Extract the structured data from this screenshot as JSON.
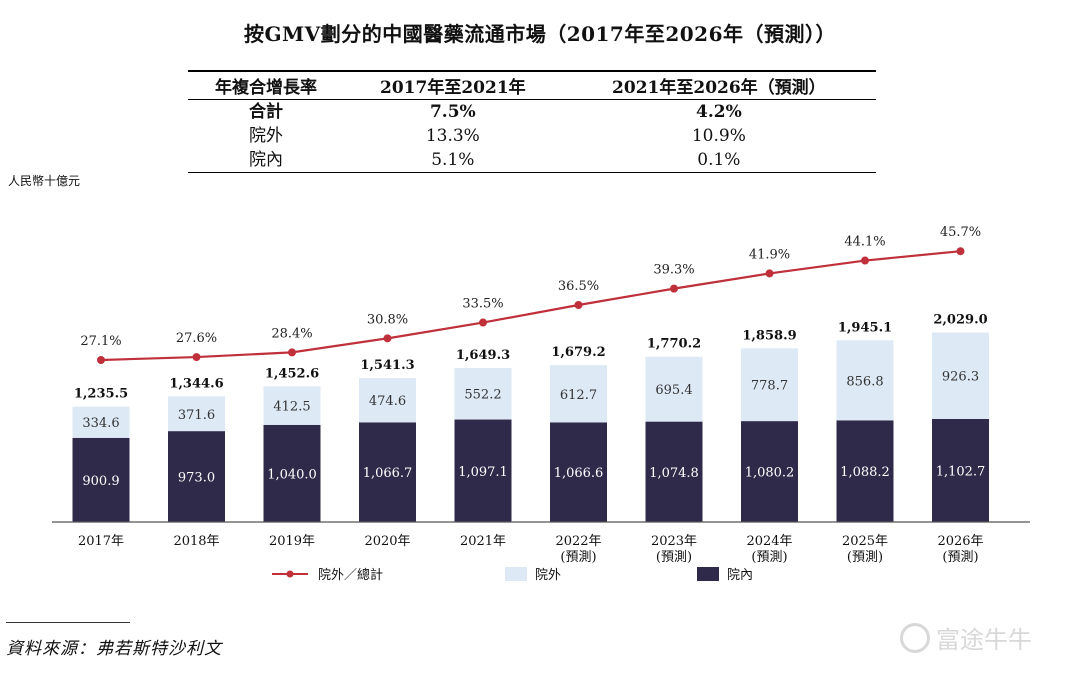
{
  "title": "按GMV劃分的中國醫藥流通市場（2017年至2026年（預測））",
  "table": {
    "headers": [
      "年複合增長率",
      "2017年至2021年",
      "2021年至2026年（預測）"
    ],
    "rows": [
      {
        "label": "合計",
        "v1": "7.5%",
        "v2": "4.2%"
      },
      {
        "label": "院外",
        "v1": "13.3%",
        "v2": "10.9%"
      },
      {
        "label": "院內",
        "v1": "5.1%",
        "v2": "0.1%"
      }
    ]
  },
  "unit_label": "人民幣十億元",
  "legend": {
    "line": "院外／總計",
    "outside": "院外",
    "inside": "院內"
  },
  "source": "資料來源：弗若斯特沙利文",
  "watermark": "富途牛牛",
  "colors": {
    "inside": "#302a4a",
    "outside": "#dde9f5",
    "line": "#c0303a",
    "axis": "#555555"
  },
  "chart_data": {
    "type": "bar",
    "stacked": true,
    "categories": [
      "2017年",
      "2018年",
      "2019年",
      "2020年",
      "2021年",
      "2022年",
      "2023年",
      "2024年",
      "2025年",
      "2026年"
    ],
    "category_sub": [
      "",
      "",
      "",
      "",
      "",
      "(預測)",
      "(預測)",
      "(預測)",
      "(預測)",
      "(預測)"
    ],
    "series": [
      {
        "name": "院內",
        "values": [
          900.9,
          973.0,
          1040.0,
          1066.7,
          1097.1,
          1066.6,
          1074.8,
          1080.2,
          1088.2,
          1102.7
        ]
      },
      {
        "name": "院外",
        "values": [
          334.6,
          371.6,
          412.5,
          474.6,
          552.2,
          612.7,
          695.4,
          778.7,
          856.8,
          926.3
        ]
      }
    ],
    "totals": [
      1235.5,
      1344.6,
      1452.6,
      1541.3,
      1649.3,
      1679.2,
      1770.2,
      1858.9,
      1945.1,
      2029.0
    ],
    "line": {
      "name": "院外／總計",
      "values": [
        27.1,
        27.6,
        28.4,
        30.8,
        33.5,
        36.5,
        39.3,
        41.9,
        44.1,
        45.7
      ]
    },
    "ylabel": "人民幣十億元"
  }
}
